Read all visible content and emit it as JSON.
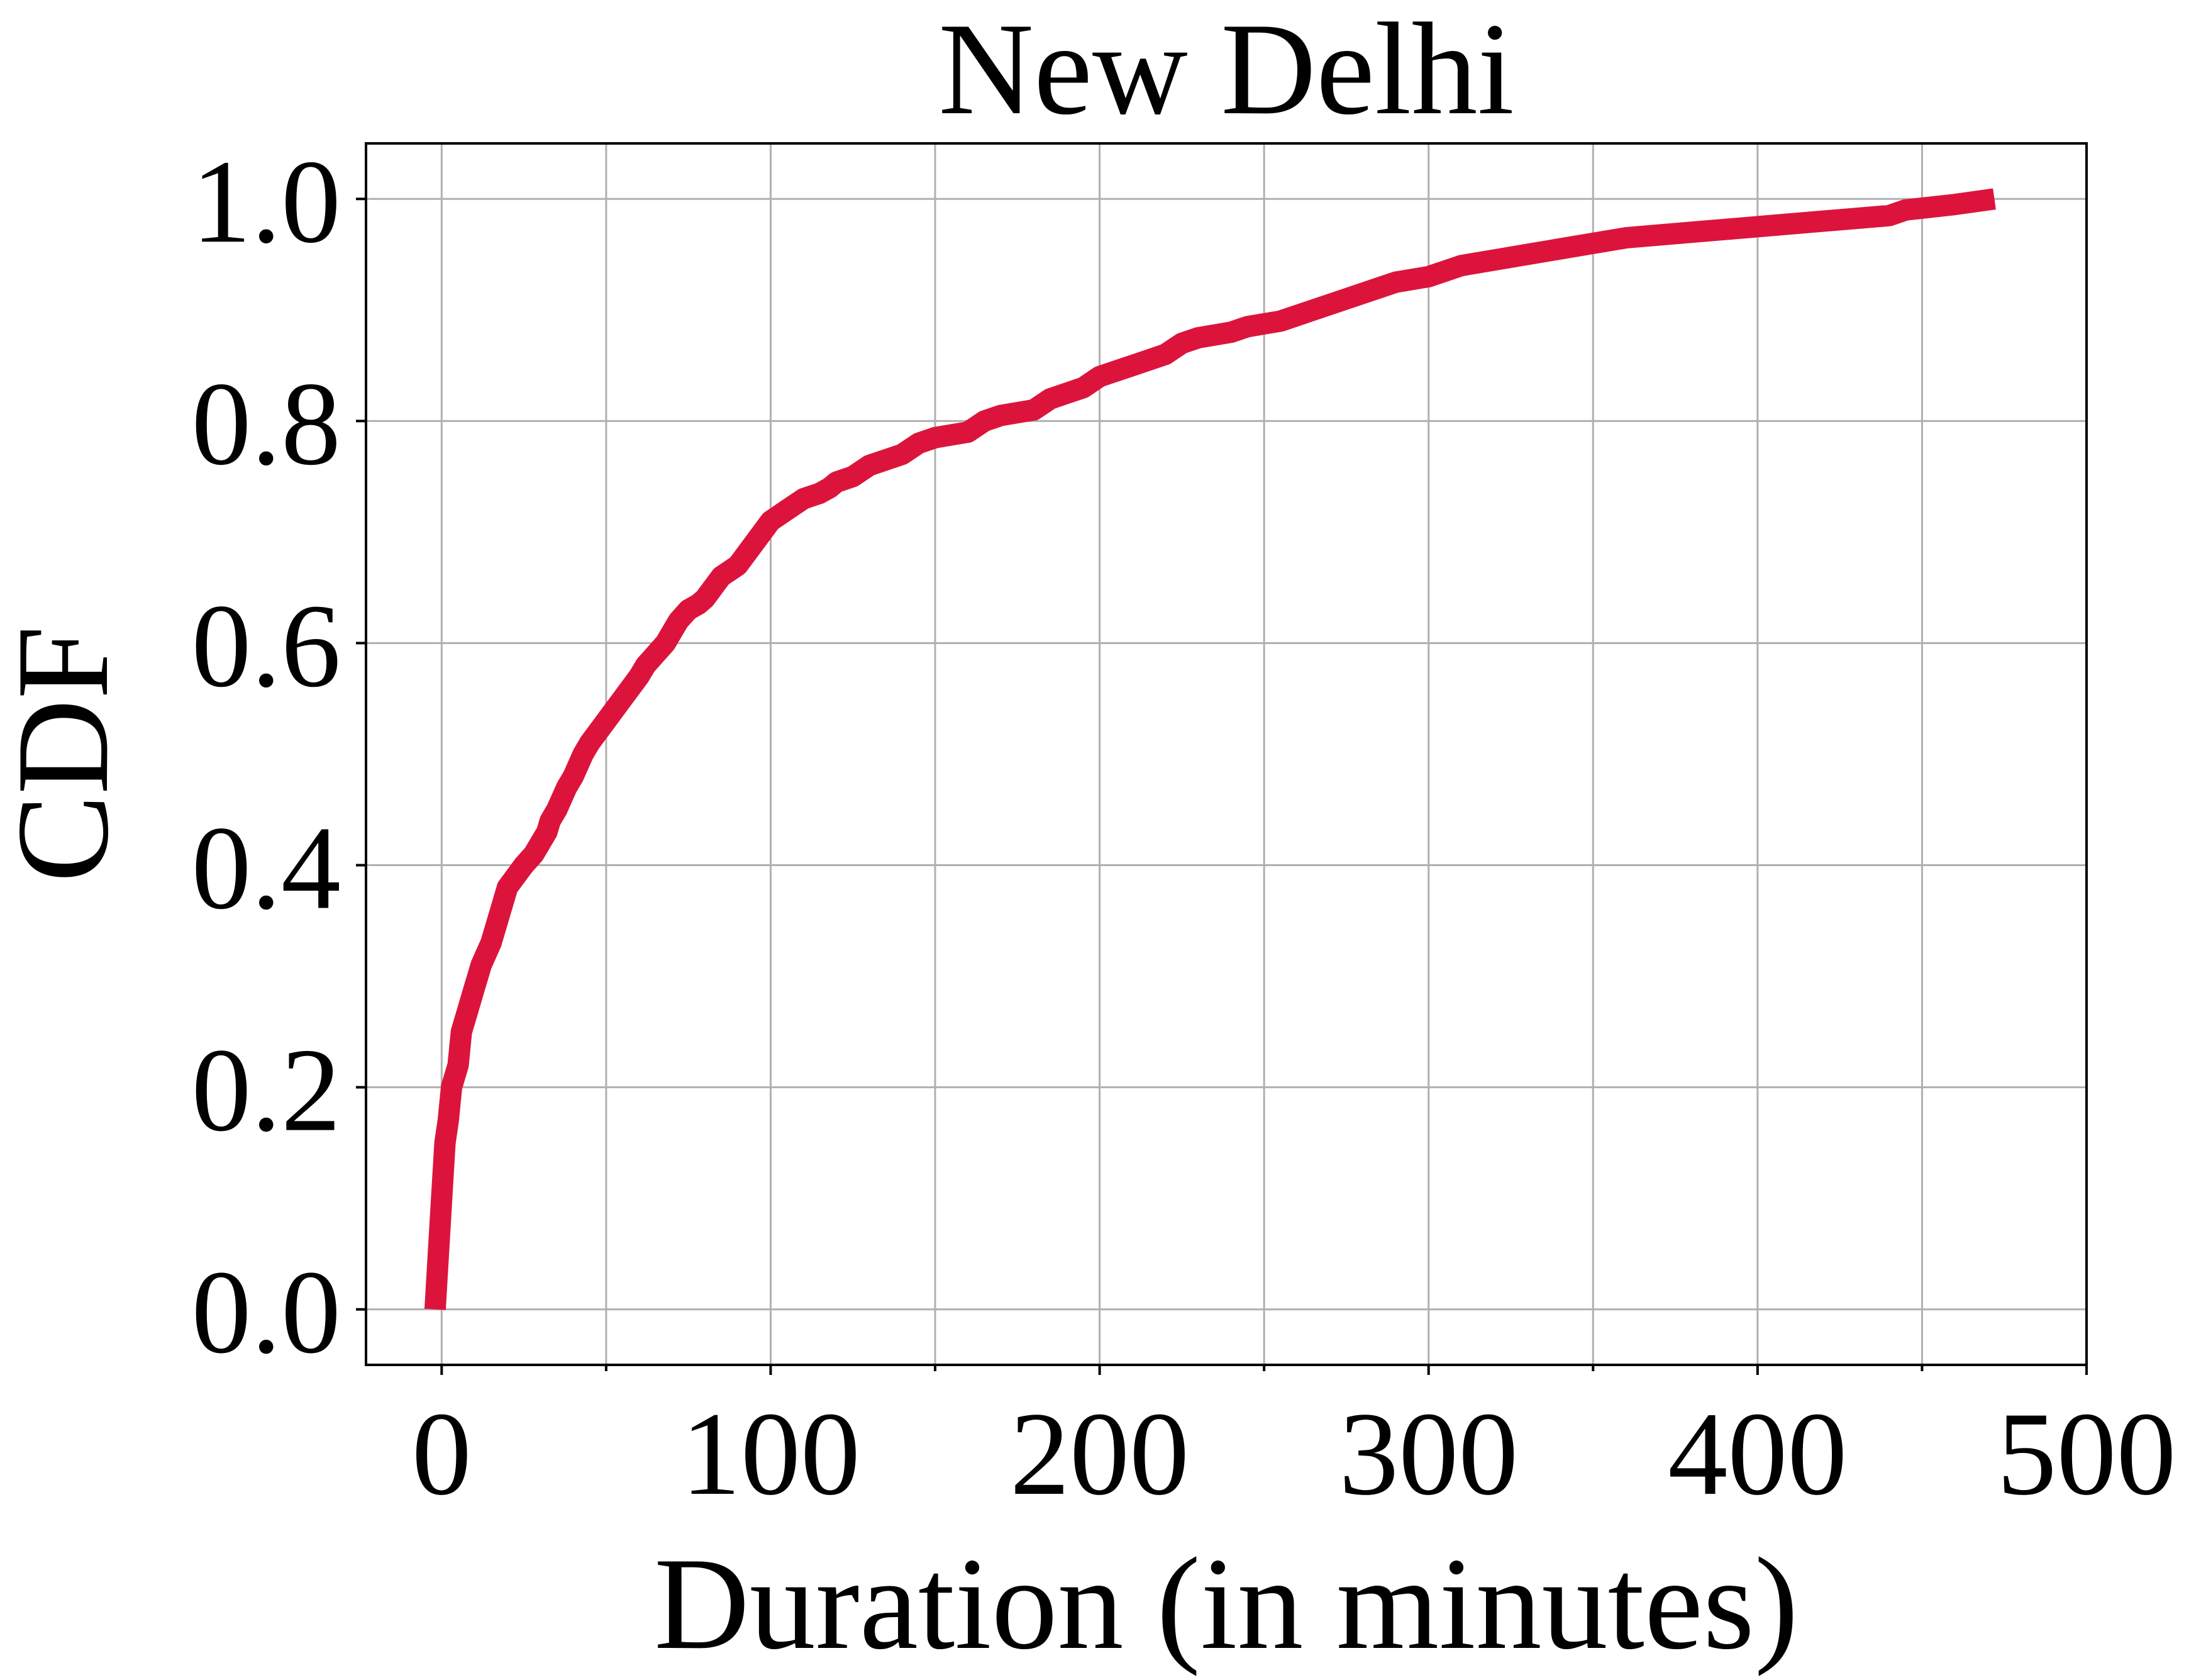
{
  "chart_data": {
    "type": "line",
    "title": "New Delhi",
    "xlabel": "Duration (in minutes)",
    "ylabel": "CDF",
    "xlim": [
      -23,
      500
    ],
    "ylim": [
      -0.05,
      1.05
    ],
    "xticks": [
      0,
      100,
      200,
      300,
      400,
      500
    ],
    "xtick_labels": [
      "0",
      "100",
      "200",
      "300",
      "400",
      "500"
    ],
    "xticks_minor": [
      50,
      150,
      250,
      350,
      450
    ],
    "yticks": [
      0.0,
      0.2,
      0.4,
      0.6,
      0.8,
      1.0
    ],
    "ytick_labels": [
      "0.0",
      "0.2",
      "0.4",
      "0.6",
      "0.8",
      "1.0"
    ],
    "grid": true,
    "series": [
      {
        "color": "#DC143C",
        "x": [
          -2,
          -1,
          0,
          1,
          2,
          3,
          5,
          6,
          8,
          10,
          11,
          12,
          15,
          17,
          20,
          25,
          28,
          30,
          32,
          33,
          35,
          38,
          40,
          43,
          45,
          50,
          55,
          60,
          62,
          65,
          68,
          70,
          72,
          75,
          78,
          80,
          85,
          90,
          95,
          100,
          105,
          110,
          115,
          118,
          120,
          125,
          130,
          140,
          145,
          150,
          160,
          165,
          170,
          180,
          185,
          190,
          195,
          200,
          210,
          215,
          220,
          225,
          230,
          240,
          245,
          255,
          260,
          265,
          275,
          280,
          285,
          290,
          300,
          310,
          320,
          330,
          340,
          350,
          360,
          380,
          400,
          420,
          440,
          445,
          460,
          472
        ],
        "y": [
          0.0,
          0.05,
          0.1,
          0.15,
          0.17,
          0.2,
          0.22,
          0.25,
          0.27,
          0.29,
          0.3,
          0.31,
          0.33,
          0.35,
          0.38,
          0.4,
          0.41,
          0.42,
          0.43,
          0.44,
          0.45,
          0.47,
          0.48,
          0.5,
          0.51,
          0.53,
          0.55,
          0.57,
          0.58,
          0.59,
          0.6,
          0.61,
          0.62,
          0.63,
          0.635,
          0.64,
          0.66,
          0.67,
          0.69,
          0.71,
          0.72,
          0.73,
          0.735,
          0.74,
          0.745,
          0.75,
          0.76,
          0.77,
          0.78,
          0.785,
          0.79,
          0.8,
          0.805,
          0.81,
          0.82,
          0.825,
          0.83,
          0.84,
          0.85,
          0.855,
          0.86,
          0.87,
          0.875,
          0.88,
          0.885,
          0.89,
          0.895,
          0.9,
          0.91,
          0.915,
          0.92,
          0.925,
          0.93,
          0.94,
          0.945,
          0.95,
          0.955,
          0.96,
          0.965,
          0.97,
          0.975,
          0.98,
          0.985,
          0.99,
          0.995,
          1.0
        ]
      }
    ]
  }
}
